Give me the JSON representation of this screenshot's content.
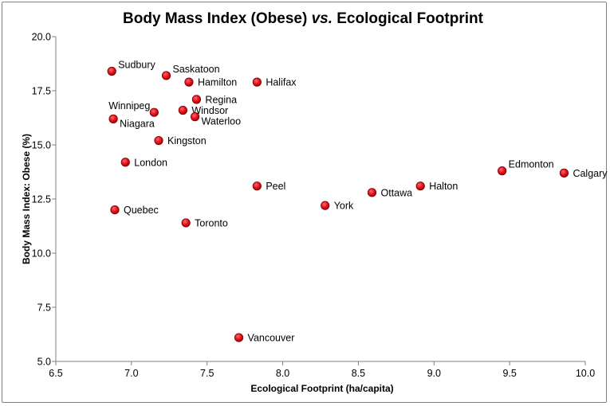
{
  "chart_data": {
    "type": "scatter",
    "title_parts": [
      {
        "text": "Body Mass Index (Obese) ",
        "italic": false
      },
      {
        "text": "vs.",
        "italic": true
      },
      {
        "text": " Ecological Footprint",
        "italic": false
      }
    ],
    "xlabel": "Ecological Footprint (ha/capita)",
    "ylabel": "Body Mass Index: Obese (%)",
    "xlim": [
      6.5,
      10.0
    ],
    "ylim": [
      5.0,
      20.0
    ],
    "xticks": [
      "6.5",
      "7.0",
      "7.5",
      "8.0",
      "8.5",
      "9.0",
      "9.5",
      "10.0"
    ],
    "yticks": [
      "5.0",
      "7.5",
      "10.0",
      "12.5",
      "15.0",
      "17.5",
      "20.0"
    ],
    "grid": false,
    "marker_color": "#e8141c",
    "marker_edge": "#7a0000",
    "points": [
      {
        "label": "Sudbury",
        "x": 6.87,
        "y": 18.4,
        "pos": "tr"
      },
      {
        "label": "Saskatoon",
        "x": 7.23,
        "y": 18.2,
        "pos": "tr"
      },
      {
        "label": "Hamilton",
        "x": 7.38,
        "y": 17.9,
        "pos": "r"
      },
      {
        "label": "Halifax",
        "x": 7.83,
        "y": 17.9,
        "pos": "r"
      },
      {
        "label": "Regina",
        "x": 7.43,
        "y": 17.1,
        "pos": "r"
      },
      {
        "label": "Winnipeg",
        "x": 7.15,
        "y": 16.5,
        "pos": "tl"
      },
      {
        "label": "Windsor",
        "x": 7.34,
        "y": 16.6,
        "pos": "r"
      },
      {
        "label": "Waterloo",
        "x": 7.42,
        "y": 16.3,
        "pos": "br"
      },
      {
        "label": "Niagara",
        "x": 6.88,
        "y": 16.2,
        "pos": "br"
      },
      {
        "label": "Kingston",
        "x": 7.18,
        "y": 15.2,
        "pos": "r"
      },
      {
        "label": "London",
        "x": 6.96,
        "y": 14.2,
        "pos": "r"
      },
      {
        "label": "Peel",
        "x": 7.83,
        "y": 13.1,
        "pos": "r"
      },
      {
        "label": "Quebec",
        "x": 6.89,
        "y": 12.0,
        "pos": "r"
      },
      {
        "label": "Toronto",
        "x": 7.36,
        "y": 11.4,
        "pos": "r"
      },
      {
        "label": "York",
        "x": 8.28,
        "y": 12.2,
        "pos": "r"
      },
      {
        "label": "Ottawa",
        "x": 8.59,
        "y": 12.8,
        "pos": "r"
      },
      {
        "label": "Halton",
        "x": 8.91,
        "y": 13.1,
        "pos": "r"
      },
      {
        "label": "Edmonton",
        "x": 9.45,
        "y": 13.8,
        "pos": "tr"
      },
      {
        "label": "Calgary",
        "x": 9.86,
        "y": 13.7,
        "pos": "r"
      },
      {
        "label": "Vancouver",
        "x": 7.71,
        "y": 6.1,
        "pos": "r"
      }
    ]
  }
}
